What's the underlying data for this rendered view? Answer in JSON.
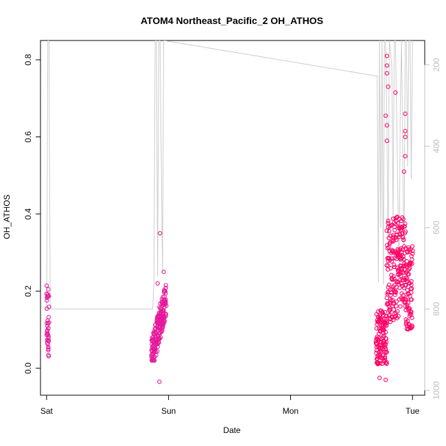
{
  "chart_data": {
    "type": "scatter",
    "title": "ATOM4 Northeast_Pacific_2 OH_ATHOS",
    "xlabel": "Date",
    "ylabel": "OH_ATHOS",
    "x_ticks": [
      "Sat",
      "Sun",
      "Mon",
      "Tue"
    ],
    "x_tick_days": [
      0,
      1,
      2,
      3
    ],
    "xlim_days": [
      -0.05,
      3.1
    ],
    "y_ticks": [
      0.0,
      0.2,
      0.4,
      0.6,
      0.8
    ],
    "y_tick_labels": [
      "0.0",
      "0.2",
      "0.4",
      "0.6",
      "0.8"
    ],
    "ylim": [
      -0.07,
      0.85
    ],
    "secondary_axis": {
      "side": "right",
      "ticks": [
        200,
        400,
        600,
        800,
        1000
      ],
      "tick_labels": [
        "200",
        "400",
        "600",
        "800",
        "1000"
      ],
      "reversed": true,
      "range": [
        140,
        1012
      ],
      "color": "#bdbdbd"
    },
    "grid": false,
    "colors": {
      "magenta": "#e6189b",
      "pink": "#ff0066",
      "pressure": "#cccccc"
    },
    "pressure_trace": [
      [
        -0.01,
        800
      ],
      [
        0.0,
        800
      ],
      [
        0.005,
        500
      ],
      [
        0.01,
        140
      ],
      [
        0.02,
        140
      ],
      [
        0.03,
        800
      ],
      [
        0.5,
        800
      ],
      [
        0.87,
        800
      ],
      [
        0.88,
        735
      ],
      [
        0.89,
        140
      ],
      [
        0.9,
        140
      ],
      [
        0.91,
        720
      ],
      [
        0.92,
        140
      ],
      [
        0.93,
        140
      ],
      [
        0.95,
        710
      ],
      [
        0.96,
        140
      ],
      [
        2.7,
        227
      ],
      [
        2.71,
        227
      ],
      [
        2.72,
        735
      ],
      [
        2.73,
        140
      ],
      [
        2.74,
        600
      ],
      [
        2.75,
        140
      ],
      [
        2.76,
        740
      ],
      [
        2.77,
        140
      ],
      [
        2.78,
        140
      ],
      [
        2.79,
        350
      ],
      [
        2.8,
        700
      ],
      [
        2.81,
        140
      ],
      [
        2.83,
        200
      ],
      [
        2.84,
        580
      ],
      [
        2.85,
        140
      ],
      [
        2.86,
        140
      ],
      [
        2.89,
        720
      ],
      [
        2.9,
        300
      ],
      [
        2.91,
        140
      ],
      [
        2.93,
        710
      ],
      [
        2.94,
        140
      ],
      [
        2.95,
        140
      ],
      [
        2.96,
        450
      ],
      [
        2.97,
        140
      ],
      [
        2.98,
        140
      ],
      [
        2.99,
        480
      ],
      [
        3.0,
        140
      ]
    ],
    "clusters": [
      {
        "series": "magenta",
        "t0": 0.0,
        "t1": 0.02,
        "n": 38,
        "ymin": 0.03,
        "ymax": 0.215,
        "mode": "uniform"
      },
      {
        "series": "magenta",
        "t0": 0.86,
        "t1": 0.98,
        "n": 190,
        "ymin": 0.02,
        "ymax": 0.235,
        "mode": "ramp",
        "extra": [
          [
            0.93,
            0.35
          ],
          [
            0.925,
            -0.035
          ],
          [
            0.91,
            0.22
          ],
          [
            0.96,
            0.25
          ]
        ]
      },
      {
        "series": "pink",
        "t0": 2.7,
        "t1": 3.0,
        "n": 420,
        "ymin": -0.03,
        "ymax": 0.82,
        "mode": "tue",
        "extra": [
          [
            2.79,
            0.81
          ],
          [
            2.79,
            0.785
          ],
          [
            2.79,
            0.765
          ],
          [
            2.8,
            0.73
          ],
          [
            2.86,
            0.715
          ],
          [
            2.78,
            0.655
          ],
          [
            2.79,
            0.63
          ],
          [
            2.79,
            0.59
          ],
          [
            2.94,
            0.66
          ],
          [
            2.94,
            0.615
          ],
          [
            2.94,
            0.6
          ],
          [
            2.94,
            0.55
          ],
          [
            2.93,
            0.51
          ],
          [
            2.73,
            -0.025
          ],
          [
            2.78,
            -0.03
          ]
        ]
      }
    ]
  }
}
